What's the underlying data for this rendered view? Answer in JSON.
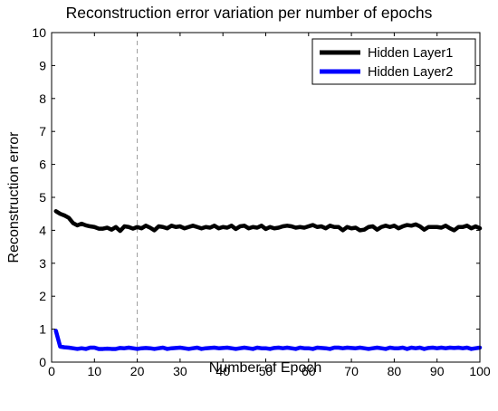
{
  "chart_data": {
    "type": "line",
    "title": "Reconstruction error variation per number of epochs",
    "xlabel": "Number of Epoch",
    "ylabel": "Reconstruction error",
    "xlim": [
      0,
      100
    ],
    "ylim": [
      0,
      10
    ],
    "xticks": [
      0,
      10,
      20,
      30,
      40,
      50,
      60,
      70,
      80,
      90,
      100
    ],
    "yticks": [
      0,
      1,
      2,
      3,
      4,
      5,
      6,
      7,
      8,
      9,
      10
    ],
    "grid": false,
    "legend_position": "top-right",
    "reference_line": {
      "x": 20,
      "style": "dashed",
      "color": "#999999"
    },
    "x": [
      1,
      2,
      3,
      4,
      5,
      6,
      7,
      8,
      9,
      10,
      11,
      12,
      13,
      14,
      15,
      16,
      17,
      18,
      19,
      20,
      21,
      22,
      23,
      24,
      25,
      26,
      27,
      28,
      29,
      30,
      31,
      32,
      33,
      34,
      35,
      36,
      37,
      38,
      39,
      40,
      41,
      42,
      43,
      44,
      45,
      46,
      47,
      48,
      49,
      50,
      51,
      52,
      53,
      54,
      55,
      56,
      57,
      58,
      59,
      60,
      61,
      62,
      63,
      64,
      65,
      66,
      67,
      68,
      69,
      70,
      71,
      72,
      73,
      74,
      75,
      76,
      77,
      78,
      79,
      80,
      81,
      82,
      83,
      84,
      85,
      86,
      87,
      88,
      89,
      90,
      91,
      92,
      93,
      94,
      95,
      96,
      97,
      98,
      99,
      100
    ],
    "series": [
      {
        "name": "Hidden Layer1",
        "color": "#000000",
        "values": [
          4.58,
          4.5,
          4.45,
          4.38,
          4.22,
          4.15,
          4.2,
          4.15,
          4.12,
          4.1,
          4.05,
          4.05,
          4.08,
          4.02,
          4.1,
          3.98,
          4.12,
          4.1,
          4.05,
          4.1,
          4.06,
          4.14,
          4.08,
          4.0,
          4.12,
          4.1,
          4.06,
          4.14,
          4.1,
          4.12,
          4.06,
          4.1,
          4.14,
          4.1,
          4.06,
          4.1,
          4.08,
          4.14,
          4.06,
          4.1,
          4.08,
          4.14,
          4.04,
          4.12,
          4.14,
          4.06,
          4.1,
          4.08,
          4.14,
          4.04,
          4.1,
          4.06,
          4.08,
          4.12,
          4.14,
          4.12,
          4.08,
          4.1,
          4.08,
          4.12,
          4.16,
          4.1,
          4.12,
          4.06,
          4.14,
          4.1,
          4.1,
          4.0,
          4.1,
          4.06,
          4.08,
          4.0,
          4.02,
          4.1,
          4.12,
          4.02,
          4.1,
          4.14,
          4.1,
          4.14,
          4.06,
          4.12,
          4.16,
          4.14,
          4.18,
          4.12,
          4.02,
          4.1,
          4.1,
          4.1,
          4.08,
          4.14,
          4.06,
          4.0,
          4.1,
          4.1,
          4.14,
          4.06,
          4.12,
          4.06
        ]
      },
      {
        "name": "Hidden Layer2",
        "color": "#0000ff",
        "values": [
          0.95,
          0.47,
          0.45,
          0.44,
          0.42,
          0.4,
          0.42,
          0.4,
          0.44,
          0.44,
          0.4,
          0.4,
          0.41,
          0.4,
          0.4,
          0.43,
          0.42,
          0.44,
          0.42,
          0.4,
          0.42,
          0.43,
          0.42,
          0.4,
          0.42,
          0.44,
          0.4,
          0.42,
          0.43,
          0.44,
          0.42,
          0.4,
          0.42,
          0.44,
          0.4,
          0.42,
          0.43,
          0.44,
          0.42,
          0.43,
          0.44,
          0.42,
          0.4,
          0.42,
          0.44,
          0.42,
          0.4,
          0.44,
          0.42,
          0.42,
          0.4,
          0.43,
          0.44,
          0.42,
          0.44,
          0.42,
          0.4,
          0.44,
          0.42,
          0.42,
          0.4,
          0.44,
          0.43,
          0.42,
          0.4,
          0.44,
          0.44,
          0.42,
          0.44,
          0.43,
          0.42,
          0.44,
          0.42,
          0.4,
          0.42,
          0.44,
          0.42,
          0.4,
          0.44,
          0.42,
          0.42,
          0.44,
          0.4,
          0.44,
          0.42,
          0.44,
          0.4,
          0.43,
          0.44,
          0.42,
          0.44,
          0.42,
          0.44,
          0.43,
          0.44,
          0.42,
          0.44,
          0.4,
          0.42,
          0.44
        ]
      }
    ]
  }
}
